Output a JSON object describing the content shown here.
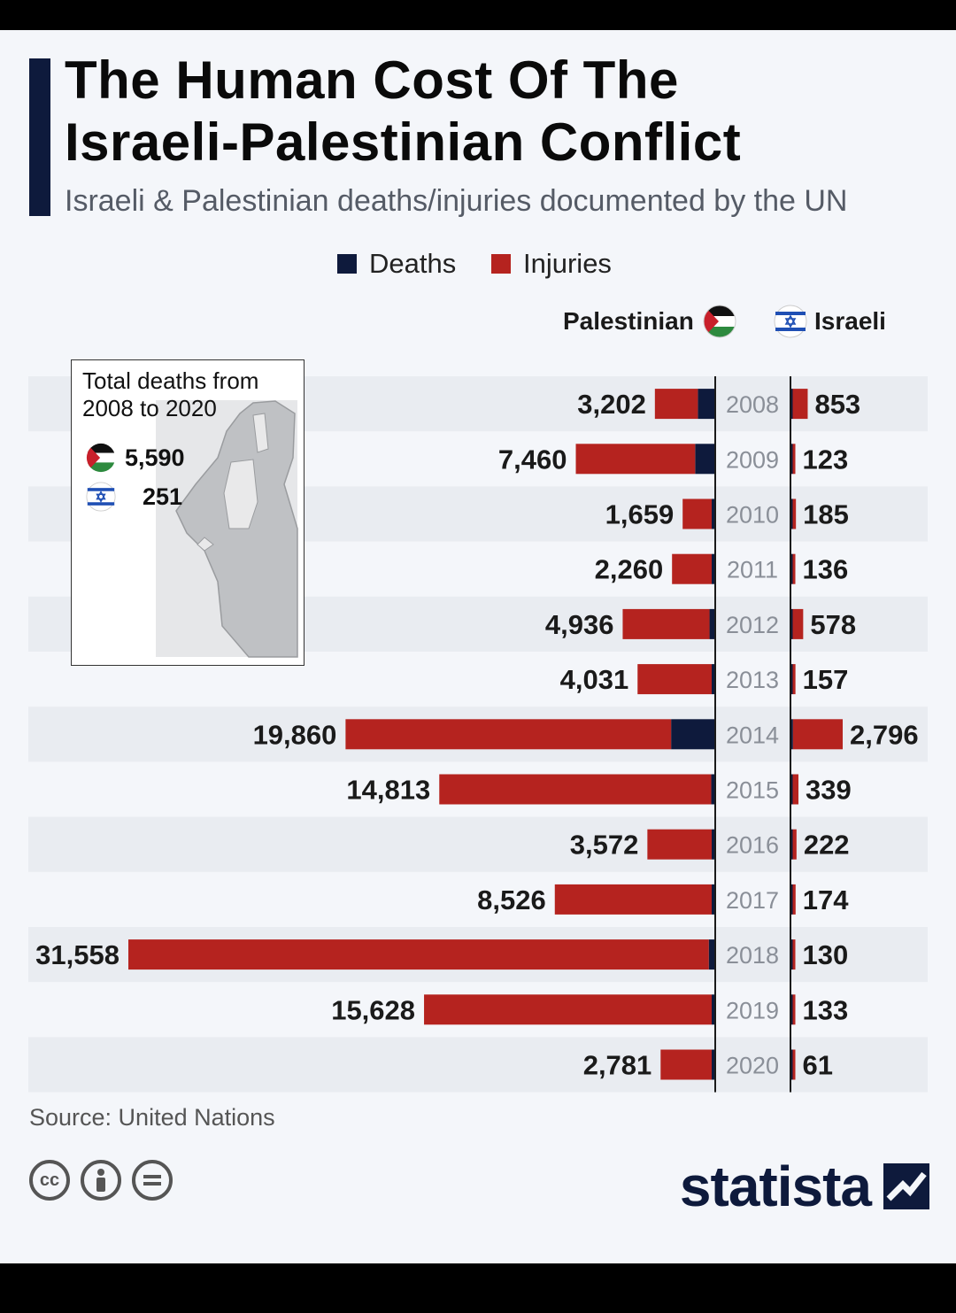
{
  "header": {
    "title_line1": "The Human Cost Of The",
    "title_line2": "Israeli-Palestinian Conflict",
    "subtitle": "Israeli & Palestinian deaths/injuries documented by the UN"
  },
  "legend": {
    "deaths": "Deaths",
    "injuries": "Injuries"
  },
  "columns": {
    "palestinian": "Palestinian",
    "israeli": "Israeli"
  },
  "inset": {
    "title": "Total deaths from 2008 to 2020",
    "palestinian_total": "5,590",
    "israeli_total": "251"
  },
  "colors": {
    "deaths": "#0e1a3c",
    "injuries": "#b5231f",
    "accent": "#0e1a3c",
    "band": "#e9ecf1"
  },
  "chart_data": {
    "type": "bar",
    "categories": [
      "2008",
      "2009",
      "2010",
      "2011",
      "2012",
      "2013",
      "2014",
      "2015",
      "2016",
      "2017",
      "2018",
      "2019",
      "2020"
    ],
    "palestinian_total_labels": [
      "3,202",
      "7,460",
      "1,659",
      "2,260",
      "4,936",
      "4,031",
      "19,860",
      "14,813",
      "3,572",
      "8,526",
      "31,558",
      "15,628",
      "2,781"
    ],
    "israeli_total_labels": [
      "853",
      "123",
      "185",
      "136",
      "578",
      "157",
      "2,796",
      "339",
      "222",
      "174",
      "130",
      "133",
      "61"
    ],
    "series": [
      {
        "name": "Palestinian Deaths",
        "values": [
          887,
          1034,
          95,
          124,
          260,
          39,
          2329,
          169,
          109,
          77,
          299,
          137,
          30
        ]
      },
      {
        "name": "Palestinian Injuries",
        "values": [
          2315,
          6426,
          1564,
          2136,
          4676,
          3992,
          17531,
          14644,
          3463,
          8449,
          31259,
          15491,
          2751
        ]
      },
      {
        "name": "Israeli Deaths",
        "values": [
          35,
          9,
          8,
          11,
          7,
          6,
          88,
          25,
          13,
          15,
          14,
          10,
          3
        ]
      },
      {
        "name": "Israeli Injuries",
        "values": [
          818,
          114,
          177,
          125,
          571,
          151,
          2708,
          314,
          209,
          159,
          116,
          123,
          58
        ]
      }
    ]
  },
  "footer": {
    "source": "Source: United Nations",
    "brand": "statista",
    "license_icons": [
      "cc-icon",
      "by-icon",
      "nd-icon"
    ]
  }
}
